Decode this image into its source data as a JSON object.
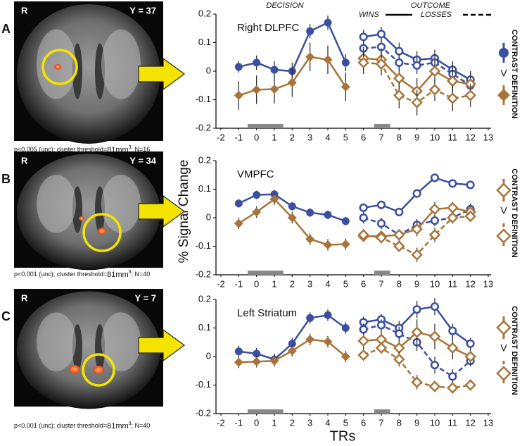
{
  "figure": {
    "decision": "DECISION",
    "outcome": "OUTCOME",
    "wins": "WINS",
    "losses": "LOSSES",
    "ylabel": "% Signal Change",
    "xlabel": "TRs"
  },
  "panels": [
    {
      "letter": "A",
      "side": "R",
      "slice": "Y = 37",
      "caption": [
        "p<0.005 (unc); cluster threshold=",
        "81mm",
        "3",
        "; N=16"
      ],
      "legend_text": "CONTRAST DEFINITION",
      "legend_vs": "V"
    },
    {
      "letter": "B",
      "side": "R",
      "slice": "Y = 34",
      "caption": [
        "p<0.001 (unc); cluster threshold=",
        "81mm",
        "3",
        "; N=40"
      ],
      "legend_text": "CONTRAST DEFINITION",
      "legend_vs": "V"
    },
    {
      "letter": "C",
      "side": "R",
      "slice": "Y = 7",
      "caption": [
        "p<0.001 (unc); cluster threshold=",
        "81mm",
        "3",
        "; N=40"
      ],
      "legend_text": "CONTRAST DEFINITION",
      "legend_vs": "V"
    }
  ],
  "chart_data": [
    {
      "type": "line",
      "title": "Right DLPFC",
      "xlim": [
        -2,
        13
      ],
      "ylim": [
        -0.2,
        0.2
      ],
      "xticks": [
        -2,
        -1,
        0,
        1,
        2,
        3,
        4,
        5,
        6,
        7,
        8,
        9,
        10,
        11,
        12,
        13
      ],
      "yticks": [
        -0.2,
        -0.1,
        0,
        0.1,
        0.2
      ],
      "series": [
        {
          "color": "#3a4fa0",
          "marker": "circle",
          "filled": true,
          "dashed": false,
          "x": [
            -1,
            0,
            1,
            2,
            3,
            4,
            5
          ],
          "values": [
            0.015,
            0.03,
            0.005,
            0.0,
            0.14,
            0.17,
            0.03
          ],
          "errors": [
            0.02,
            0.025,
            0.03,
            0.03,
            0.025,
            0.025,
            0.03
          ]
        },
        {
          "color": "#a8743a",
          "marker": "diamond",
          "filled": true,
          "dashed": false,
          "x": [
            -1,
            0,
            1,
            2,
            3,
            4,
            5
          ],
          "values": [
            -0.085,
            -0.065,
            -0.063,
            -0.04,
            0.05,
            0.04,
            -0.055
          ],
          "errors": [
            0.05,
            0.05,
            0.05,
            0.05,
            0.05,
            0.05,
            0.05
          ]
        },
        {
          "color": "#3a4fa0",
          "marker": "circle",
          "filled": false,
          "dashed": false,
          "x": [
            6,
            7,
            8,
            9,
            10,
            11,
            12
          ],
          "values": [
            0.12,
            0.13,
            0.07,
            0.04,
            0.045,
            0.005,
            -0.03
          ],
          "errors": [
            0.025,
            0.025,
            0.03,
            0.03,
            0.03,
            0.03,
            0.03
          ]
        },
        {
          "color": "#3a4fa0",
          "marker": "circle",
          "filled": false,
          "dashed": true,
          "x": [
            6,
            7,
            8,
            9,
            10,
            11,
            12
          ],
          "values": [
            0.08,
            0.085,
            0.03,
            0.02,
            0.03,
            -0.01,
            -0.05
          ],
          "errors": [
            0.025,
            0.025,
            0.03,
            0.03,
            0.03,
            0.03,
            0.03
          ]
        },
        {
          "color": "#a8743a",
          "marker": "diamond",
          "filled": false,
          "dashed": false,
          "x": [
            6,
            7,
            8,
            9,
            10,
            11,
            12
          ],
          "values": [
            0.045,
            0.04,
            -0.025,
            -0.07,
            0.0,
            -0.035,
            -0.045
          ],
          "errors": [
            0.04,
            0.04,
            0.045,
            0.045,
            0.04,
            0.045,
            0.04
          ]
        },
        {
          "color": "#a8743a",
          "marker": "diamond",
          "filled": false,
          "dashed": true,
          "x": [
            6,
            7,
            8,
            9,
            10,
            11,
            12
          ],
          "values": [
            0.03,
            0.025,
            -0.085,
            -0.11,
            -0.065,
            -0.095,
            -0.085
          ],
          "errors": [
            0.04,
            0.04,
            0.045,
            0.045,
            0.04,
            0.045,
            0.04
          ]
        }
      ]
    },
    {
      "type": "line",
      "title": "VMPFC",
      "xlim": [
        -2,
        13
      ],
      "ylim": [
        -0.2,
        0.2
      ],
      "xticks": [
        -2,
        -1,
        0,
        1,
        2,
        3,
        4,
        5,
        6,
        7,
        8,
        9,
        10,
        11,
        12,
        13
      ],
      "yticks": [
        -0.2,
        -0.1,
        0,
        0.1,
        0.2
      ],
      "series": [
        {
          "color": "#3a4fa0",
          "marker": "circle",
          "filled": true,
          "dashed": false,
          "x": [
            -1,
            0,
            1,
            2,
            3,
            4,
            5
          ],
          "values": [
            0.05,
            0.08,
            0.082,
            0.04,
            0.018,
            0.01,
            -0.012
          ],
          "errors": [
            0.015,
            0.015,
            0.015,
            0.015,
            0.015,
            0.015,
            0.015
          ]
        },
        {
          "color": "#a8743a",
          "marker": "diamond",
          "filled": true,
          "dashed": false,
          "x": [
            -1,
            0,
            1,
            2,
            3,
            4,
            5
          ],
          "values": [
            -0.02,
            0.02,
            0.065,
            0.0,
            -0.075,
            -0.095,
            -0.093
          ],
          "errors": [
            0.02,
            0.02,
            0.02,
            0.02,
            0.02,
            0.02,
            0.02
          ]
        },
        {
          "color": "#3a4fa0",
          "marker": "circle",
          "filled": false,
          "dashed": false,
          "x": [
            6,
            7,
            8,
            9,
            10,
            11,
            12
          ],
          "values": [
            0.035,
            0.045,
            0.02,
            0.085,
            0.14,
            0.12,
            0.115
          ],
          "errors": [
            0.015,
            0.015,
            0.015,
            0.015,
            0.015,
            0.015,
            0.015
          ]
        },
        {
          "color": "#3a4fa0",
          "marker": "circle",
          "filled": false,
          "dashed": true,
          "x": [
            6,
            7,
            8,
            9,
            10,
            11,
            12
          ],
          "values": [
            0.0,
            -0.02,
            -0.06,
            -0.025,
            -0.01,
            0.0,
            0.03
          ],
          "errors": [
            0.02,
            0.02,
            0.02,
            0.02,
            0.02,
            0.02,
            0.02
          ]
        },
        {
          "color": "#a8743a",
          "marker": "diamond",
          "filled": false,
          "dashed": false,
          "x": [
            6,
            7,
            8,
            9,
            10,
            11,
            12
          ],
          "values": [
            -0.065,
            -0.065,
            -0.06,
            -0.04,
            0.03,
            0.035,
            0.02
          ],
          "errors": [
            0.02,
            0.02,
            0.02,
            0.025,
            0.025,
            0.02,
            0.02
          ]
        },
        {
          "color": "#a8743a",
          "marker": "diamond",
          "filled": false,
          "dashed": true,
          "x": [
            6,
            7,
            8,
            9,
            10,
            11,
            12
          ],
          "values": [
            -0.06,
            -0.07,
            -0.1,
            -0.13,
            -0.06,
            0.0,
            0.005
          ],
          "errors": [
            0.02,
            0.02,
            0.02,
            0.025,
            0.025,
            0.02,
            0.02
          ]
        }
      ]
    },
    {
      "type": "line",
      "title": "Left Striatum",
      "xlim": [
        -2,
        13
      ],
      "ylim": [
        -0.2,
        0.2
      ],
      "xticks": [
        -2,
        -1,
        0,
        1,
        2,
        3,
        4,
        5,
        6,
        7,
        8,
        9,
        10,
        11,
        12,
        13
      ],
      "yticks": [
        -0.2,
        -0.1,
        0,
        0.1,
        0.2
      ],
      "series": [
        {
          "color": "#3a4fa0",
          "marker": "circle",
          "filled": true,
          "dashed": false,
          "x": [
            -1,
            0,
            1,
            2,
            3,
            4,
            5
          ],
          "values": [
            0.018,
            0.01,
            -0.01,
            0.045,
            0.135,
            0.145,
            0.1
          ],
          "errors": [
            0.02,
            0.02,
            0.02,
            0.02,
            0.02,
            0.02,
            0.02
          ]
        },
        {
          "color": "#a8743a",
          "marker": "diamond",
          "filled": true,
          "dashed": false,
          "x": [
            -1,
            0,
            1,
            2,
            3,
            4,
            5
          ],
          "values": [
            -0.02,
            -0.018,
            -0.015,
            0.02,
            0.06,
            0.052,
            0.0
          ],
          "errors": [
            0.02,
            0.02,
            0.02,
            0.02,
            0.02,
            0.02,
            0.02
          ]
        },
        {
          "color": "#3a4fa0",
          "marker": "circle",
          "filled": false,
          "dashed": false,
          "x": [
            6,
            7,
            8,
            9,
            10,
            11,
            12
          ],
          "values": [
            0.12,
            0.13,
            0.1,
            0.165,
            0.175,
            0.09,
            0.045
          ],
          "errors": [
            0.02,
            0.02,
            0.025,
            0.03,
            0.03,
            0.025,
            0.02
          ]
        },
        {
          "color": "#3a4fa0",
          "marker": "circle",
          "filled": false,
          "dashed": true,
          "x": [
            6,
            7,
            8,
            9,
            10,
            11,
            12
          ],
          "values": [
            0.095,
            0.11,
            0.08,
            0.05,
            -0.03,
            -0.07,
            -0.015
          ],
          "errors": [
            0.02,
            0.02,
            0.025,
            0.03,
            0.03,
            0.025,
            0.02
          ]
        },
        {
          "color": "#a8743a",
          "marker": "diamond",
          "filled": false,
          "dashed": false,
          "x": [
            6,
            7,
            8,
            9,
            10,
            11,
            12
          ],
          "values": [
            0.055,
            0.06,
            0.03,
            0.085,
            0.07,
            0.03,
            0.0
          ],
          "errors": [
            0.03,
            0.03,
            0.04,
            0.045,
            0.045,
            0.04,
            0.03
          ]
        },
        {
          "color": "#a8743a",
          "marker": "diamond",
          "filled": false,
          "dashed": true,
          "x": [
            6,
            7,
            8,
            9,
            10,
            11,
            12
          ],
          "values": [
            0.005,
            0.03,
            -0.01,
            -0.09,
            -0.105,
            -0.11,
            -0.1
          ],
          "errors": [
            0.02,
            0.02,
            0.025,
            0.025,
            0.02,
            0.02,
            0.02
          ]
        }
      ]
    }
  ]
}
